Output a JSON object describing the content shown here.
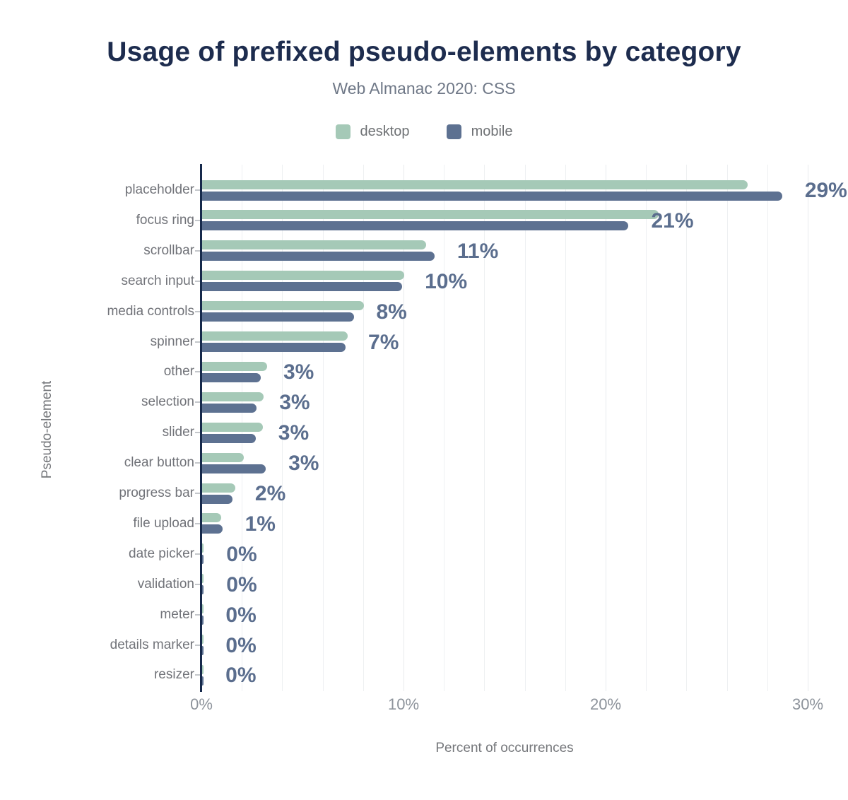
{
  "header": {
    "title": "Usage of prefixed pseudo-elements by category",
    "subtitle": "Web Almanac 2020: CSS"
  },
  "legend": [
    {
      "label": "desktop",
      "color": "#a5c9b7"
    },
    {
      "label": "mobile",
      "color": "#5d7191"
    }
  ],
  "chart_data": {
    "type": "bar",
    "orientation": "horizontal",
    "title": "Usage of prefixed pseudo-elements by category",
    "subtitle": "Web Almanac 2020: CSS",
    "xlabel": "Percent of occurrences",
    "ylabel": "Pseudo-element",
    "xlim": [
      0,
      31.85
    ],
    "x_tick_labels": [
      "0%",
      "10%",
      "20%",
      "30%"
    ],
    "x_tick_values": [
      0,
      10,
      20,
      30
    ],
    "gridline_step_pct": 2,
    "grid": "on",
    "legend_position": "top",
    "categories": [
      "placeholder",
      "focus ring",
      "scrollbar",
      "search input",
      "media controls",
      "spinner",
      "other",
      "selection",
      "slider",
      "clear button",
      "progress bar",
      "file upload",
      "date picker",
      "validation",
      "meter",
      "details marker",
      "resizer"
    ],
    "series": [
      {
        "name": "desktop",
        "color": "#a5c9b7",
        "values": [
          27.0,
          22.6,
          11.1,
          10.0,
          8.0,
          7.2,
          3.2,
          3.05,
          3.0,
          2.05,
          1.65,
          0.95,
          0.08,
          0.08,
          0.05,
          0.05,
          0.04
        ]
      },
      {
        "name": "mobile",
        "color": "#5d7191",
        "values": [
          28.7,
          21.1,
          11.5,
          9.9,
          7.5,
          7.1,
          2.9,
          2.7,
          2.65,
          3.15,
          1.5,
          1.0,
          0.08,
          0.08,
          0.05,
          0.05,
          0.04
        ]
      }
    ],
    "value_labels": [
      "29%",
      "21%",
      "11%",
      "10%",
      "8%",
      "7%",
      "3%",
      "3%",
      "3%",
      "3%",
      "2%",
      "1%",
      "0%",
      "0%",
      "0%",
      "0%",
      "0%"
    ]
  },
  "colors": {
    "title": "#1d2c4e",
    "axis_line": "#16294b",
    "value_label": "#5b6e8e",
    "category_label": "#717379",
    "tick_label": "#8d939b",
    "gridline": "#eef0f2",
    "desktop": "#a5c9b7",
    "mobile": "#5d7191"
  }
}
